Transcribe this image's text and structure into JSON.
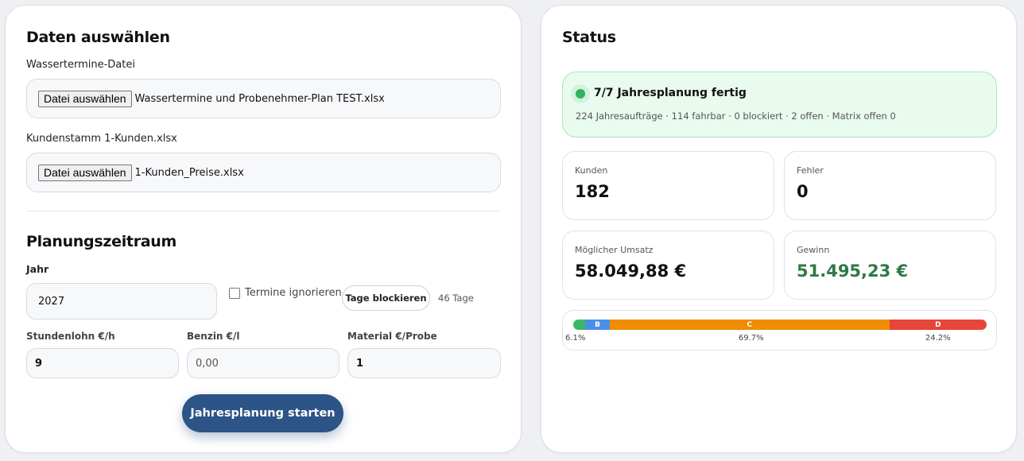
{
  "left": {
    "title": "Daten auswählen",
    "files": [
      {
        "label": "Wassertermine-Datei",
        "button": "Datei auswählen",
        "filename": "Wassertermine und Probenehmer-Plan TEST.xlsx"
      },
      {
        "label": "Kundenstamm 1-Kunden.xlsx",
        "button": "Datei auswählen",
        "filename": "1-Kunden_Preise.xlsx"
      }
    ],
    "planning_title": "Planungszeitraum",
    "year_label": "Jahr",
    "year_value": "2027",
    "ignore_label": "Termine ignorieren",
    "block_button": "Tage blockieren",
    "blocked_days": "46 Tage",
    "wage_label": "Stundenlohn €/h",
    "wage_value": "9",
    "fuel_label": "Benzin €/l",
    "fuel_value": "0,00",
    "material_label": "Material €/Probe",
    "material_value": "1",
    "start_button": "Jahresplanung starten"
  },
  "right": {
    "title": "Status",
    "status_headline": "7/7 Jahresplanung fertig",
    "status_detail": "224 Jahresaufträge · 114 fahrbar · 0 blockiert · 2 offen · Matrix offen 0",
    "cards": [
      {
        "label": "Kunden",
        "value": "182"
      },
      {
        "label": "Fehler",
        "value": "0"
      },
      {
        "label": "Möglicher Umsatz",
        "value": "58.049,88 €"
      },
      {
        "label": "Gewinn",
        "value": "51.495,23 €"
      }
    ],
    "distribution": [
      {
        "label": "",
        "share": 3,
        "color": "#3ab868",
        "pct": ""
      },
      {
        "label": "B",
        "share": 6.1,
        "color": "#4a8fe7",
        "pct": "6.1%"
      },
      {
        "label": "C",
        "share": 69.7,
        "color": "#f08c00",
        "pct": "69.7%"
      },
      {
        "label": "D",
        "share": 24.2,
        "color": "#e7443a",
        "pct": "24.2%"
      }
    ]
  }
}
